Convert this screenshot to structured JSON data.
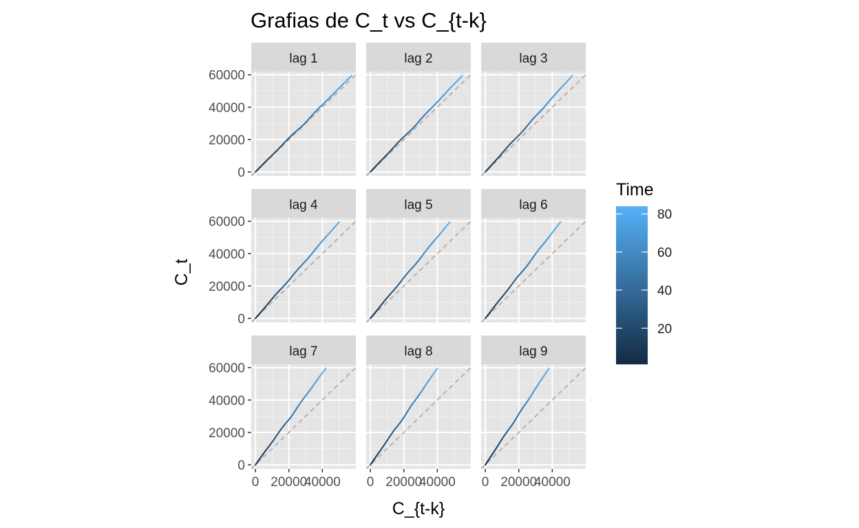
{
  "chart_data": {
    "type": "line",
    "title": "Grafias de C_t vs C_{t-k}",
    "xlabel": "C_{t-k}",
    "ylabel": "C_t",
    "xlim": [
      -2500,
      60000
    ],
    "ylim": [
      -2500,
      62000
    ],
    "x_ticks": [
      0,
      20000,
      40000
    ],
    "x_tick_labels": [
      "0",
      "20000",
      "40000"
    ],
    "y_ticks": [
      0,
      20000,
      40000,
      60000
    ],
    "y_tick_labels": [
      "0",
      "20000",
      "40000",
      "60000"
    ],
    "reference_line": {
      "type": "identity",
      "style": "dashed",
      "color": "#b3b3b3"
    },
    "grid": true,
    "panel_background": "#e5e5e5",
    "strip_background": "#d9d9d9",
    "facets": [
      {
        "label": "lag 1",
        "lag": 1,
        "x_max": 57500
      },
      {
        "label": "lag 2",
        "lag": 2,
        "x_max": 55000
      },
      {
        "label": "lag 3",
        "lag": 3,
        "x_max": 52000
      },
      {
        "label": "lag 4",
        "lag": 4,
        "x_max": 50000
      },
      {
        "label": "lag 5",
        "lag": 5,
        "x_max": 47500
      },
      {
        "label": "lag 6",
        "lag": 6,
        "x_max": 45000
      },
      {
        "label": "lag 7",
        "lag": 7,
        "x_max": 42000
      },
      {
        "label": "lag 8",
        "lag": 8,
        "x_max": 40000
      },
      {
        "label": "lag 9",
        "lag": 9,
        "x_max": 38000
      }
    ],
    "series_points": 84,
    "series_max": 59500,
    "color_legend": {
      "title": "Time",
      "min": 1,
      "max": 84,
      "ticks": [
        20,
        40,
        60,
        80
      ],
      "tick_labels": [
        "20",
        "40",
        "60",
        "80"
      ],
      "low_color": "#132b43",
      "high_color": "#56b1f7"
    }
  }
}
